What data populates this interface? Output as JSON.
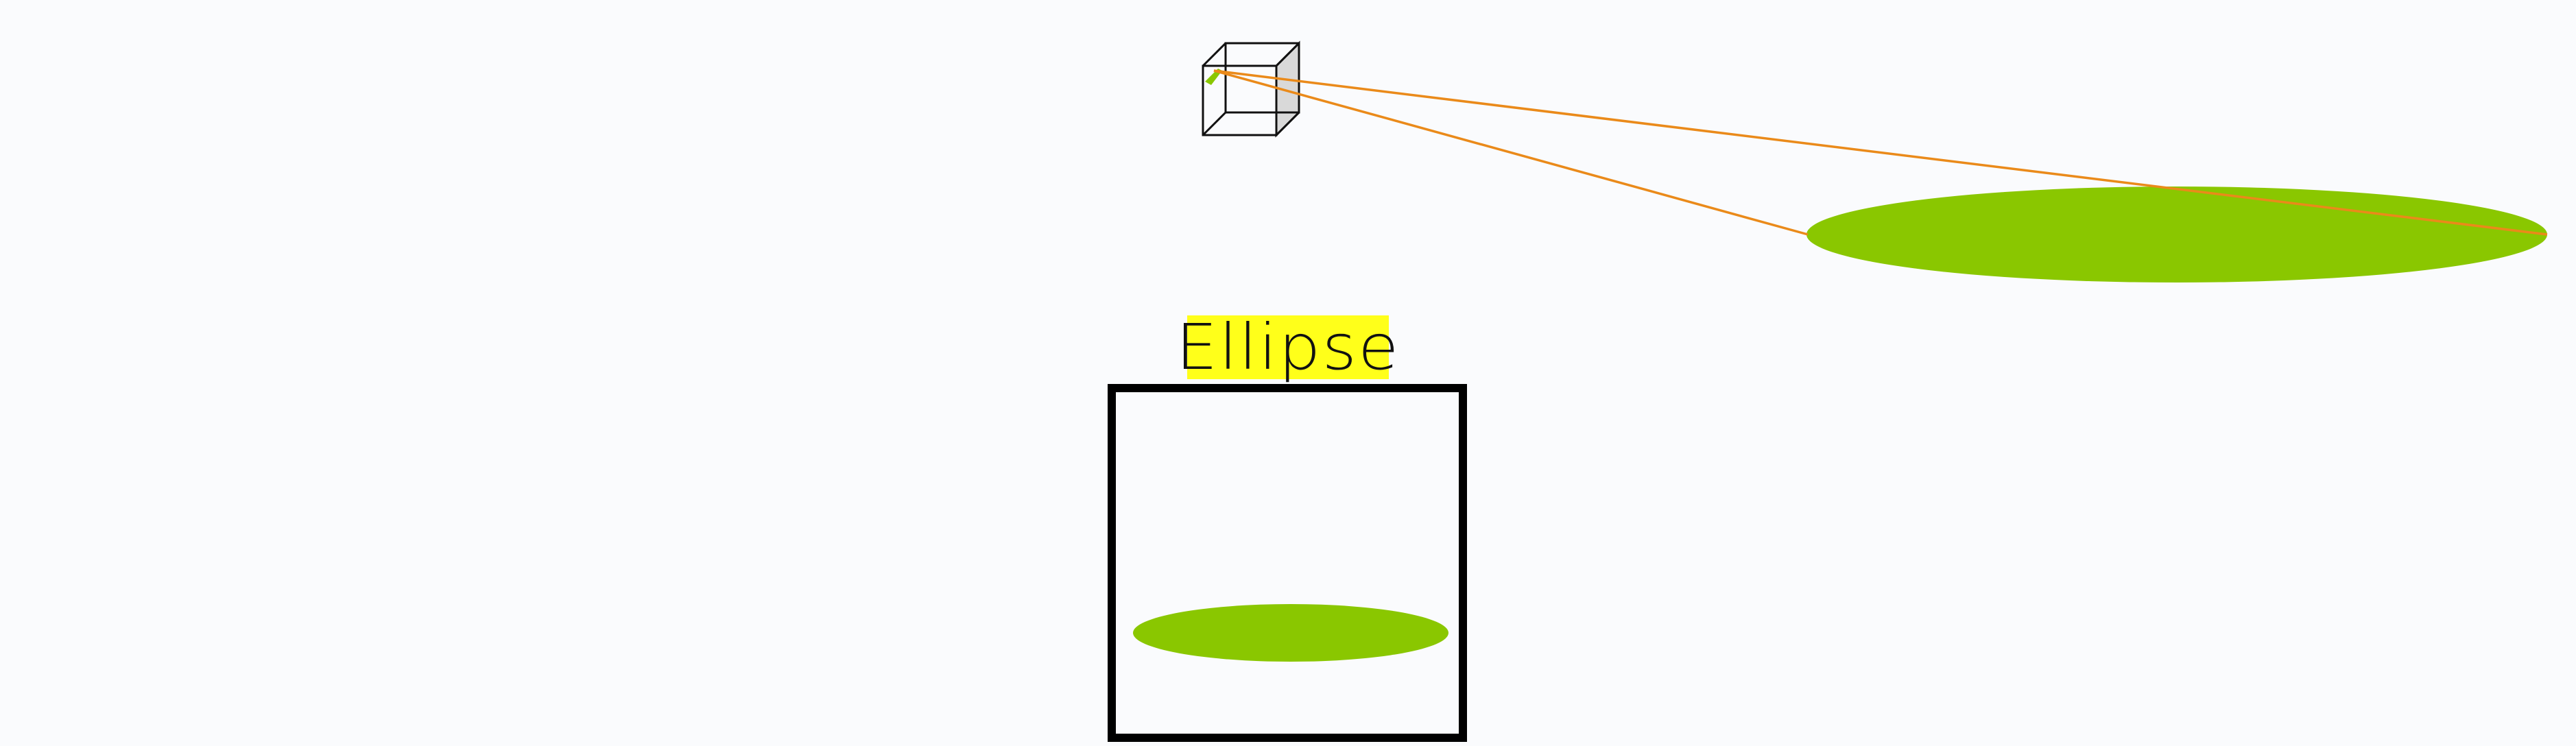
{
  "title": "Ellipse",
  "colors": {
    "background": "#fafbfd",
    "ellipse_fill": "#8ac700",
    "ray_color": "#ea8a1a",
    "label_background": "#ffff1a",
    "frame_border": "#000000",
    "cube_side_fill": "#d9d9d9"
  },
  "icons": {
    "camera": "wireframe-cube-icon"
  }
}
